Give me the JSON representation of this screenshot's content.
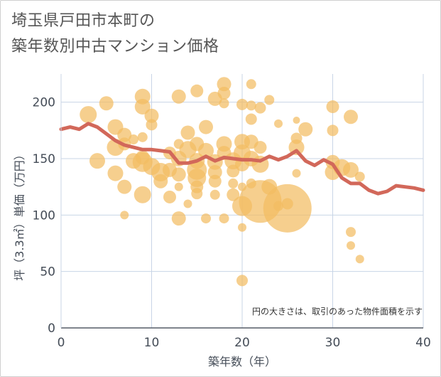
{
  "title_lines": [
    "埼玉県戸田市本町の",
    "築年数別中古マンション価格"
  ],
  "colors": {
    "bubble": "#f2bd63",
    "line": "#d2685a",
    "grid": "#c8d4e6",
    "plot_bg": "#ffffff"
  },
  "chart_data": {
    "type": "scatter",
    "xlabel": "築年数（年）",
    "ylabel": "坪（3.3㎡）単価（万円）",
    "xlim": [
      0,
      40
    ],
    "ylim": [
      0,
      225
    ],
    "x_ticks": [
      "0",
      "10",
      "20",
      "30",
      "40"
    ],
    "y_ticks": [
      "0",
      "50",
      "100",
      "150",
      "200"
    ],
    "note": "円の大きさは、取引のあった物件面積を示す",
    "grid": true,
    "series": [
      {
        "kind": "bubble",
        "points": [
          {
            "x": 3,
            "y": 189,
            "s": 12
          },
          {
            "x": 5,
            "y": 199,
            "s": 10
          },
          {
            "x": 6,
            "y": 178,
            "s": 11
          },
          {
            "x": 7,
            "y": 171,
            "s": 10
          },
          {
            "x": 8,
            "y": 167,
            "s": 7
          },
          {
            "x": 9,
            "y": 205,
            "s": 11
          },
          {
            "x": 9,
            "y": 196,
            "s": 11
          },
          {
            "x": 10,
            "y": 188,
            "s": 10
          },
          {
            "x": 10,
            "y": 180,
            "s": 8
          },
          {
            "x": 9,
            "y": 169,
            "s": 7
          },
          {
            "x": 6,
            "y": 160,
            "s": 12
          },
          {
            "x": 7,
            "y": 163,
            "s": 9
          },
          {
            "x": 4,
            "y": 148,
            "s": 11
          },
          {
            "x": 6,
            "y": 137,
            "s": 11
          },
          {
            "x": 7,
            "y": 125,
            "s": 10
          },
          {
            "x": 9,
            "y": 118,
            "s": 12
          },
          {
            "x": 7,
            "y": 100,
            "s": 6
          },
          {
            "x": 8,
            "y": 148,
            "s": 11
          },
          {
            "x": 9,
            "y": 151,
            "s": 10
          },
          {
            "x": 9,
            "y": 147,
            "s": 14
          },
          {
            "x": 10,
            "y": 143,
            "s": 12
          },
          {
            "x": 11,
            "y": 138,
            "s": 13
          },
          {
            "x": 11,
            "y": 130,
            "s": 10
          },
          {
            "x": 12,
            "y": 116,
            "s": 9
          },
          {
            "x": 12,
            "y": 140,
            "s": 10
          },
          {
            "x": 12,
            "y": 155,
            "s": 9
          },
          {
            "x": 13,
            "y": 163,
            "s": 7
          },
          {
            "x": 13,
            "y": 150,
            "s": 11
          },
          {
            "x": 13,
            "y": 136,
            "s": 10
          },
          {
            "x": 13,
            "y": 125,
            "s": 6
          },
          {
            "x": 13,
            "y": 97,
            "s": 10
          },
          {
            "x": 14,
            "y": 110,
            "s": 6
          },
          {
            "x": 14,
            "y": 173,
            "s": 10
          },
          {
            "x": 14,
            "y": 158,
            "s": 12
          },
          {
            "x": 15,
            "y": 140,
            "s": 14
          },
          {
            "x": 15,
            "y": 133,
            "s": 13
          },
          {
            "x": 15,
            "y": 125,
            "s": 9
          },
          {
            "x": 15,
            "y": 119,
            "s": 8
          },
          {
            "x": 15,
            "y": 148,
            "s": 11
          },
          {
            "x": 15,
            "y": 163,
            "s": 10
          },
          {
            "x": 13,
            "y": 205,
            "s": 10
          },
          {
            "x": 15,
            "y": 210,
            "s": 9
          },
          {
            "x": 16,
            "y": 178,
            "s": 10
          },
          {
            "x": 16,
            "y": 157,
            "s": 11
          },
          {
            "x": 17,
            "y": 203,
            "s": 10
          },
          {
            "x": 17,
            "y": 147,
            "s": 11
          },
          {
            "x": 17,
            "y": 138,
            "s": 10
          },
          {
            "x": 17,
            "y": 130,
            "s": 9
          },
          {
            "x": 17,
            "y": 118,
            "s": 7
          },
          {
            "x": 16,
            "y": 97,
            "s": 7
          },
          {
            "x": 18,
            "y": 216,
            "s": 10
          },
          {
            "x": 18,
            "y": 208,
            "s": 9
          },
          {
            "x": 18,
            "y": 199,
            "s": 7
          },
          {
            "x": 18,
            "y": 163,
            "s": 11
          },
          {
            "x": 18,
            "y": 155,
            "s": 10
          },
          {
            "x": 19,
            "y": 148,
            "s": 12
          },
          {
            "x": 19,
            "y": 139,
            "s": 9
          },
          {
            "x": 19,
            "y": 128,
            "s": 7
          },
          {
            "x": 19,
            "y": 118,
            "s": 9
          },
          {
            "x": 18,
            "y": 97,
            "s": 7
          },
          {
            "x": 20,
            "y": 198,
            "s": 8
          },
          {
            "x": 20,
            "y": 165,
            "s": 11
          },
          {
            "x": 20,
            "y": 155,
            "s": 12
          },
          {
            "x": 20,
            "y": 145,
            "s": 10
          },
          {
            "x": 20,
            "y": 125,
            "s": 6
          },
          {
            "x": 20,
            "y": 108,
            "s": 14
          },
          {
            "x": 20,
            "y": 89,
            "s": 6
          },
          {
            "x": 20,
            "y": 42,
            "s": 8
          },
          {
            "x": 21,
            "y": 216,
            "s": 7
          },
          {
            "x": 21,
            "y": 197,
            "s": 7
          },
          {
            "x": 21,
            "y": 185,
            "s": 8
          },
          {
            "x": 21,
            "y": 165,
            "s": 10
          },
          {
            "x": 21,
            "y": 150,
            "s": 11
          },
          {
            "x": 21,
            "y": 128,
            "s": 7
          },
          {
            "x": 22,
            "y": 112,
            "s": 30
          },
          {
            "x": 22,
            "y": 145,
            "s": 12
          },
          {
            "x": 22,
            "y": 160,
            "s": 9
          },
          {
            "x": 22,
            "y": 195,
            "s": 8
          },
          {
            "x": 23,
            "y": 202,
            "s": 7
          },
          {
            "x": 23,
            "y": 125,
            "s": 11
          },
          {
            "x": 24,
            "y": 181,
            "s": 6
          },
          {
            "x": 24,
            "y": 108,
            "s": 7
          },
          {
            "x": 25,
            "y": 106,
            "s": 34
          },
          {
            "x": 25,
            "y": 110,
            "s": 8
          },
          {
            "x": 26,
            "y": 184,
            "s": 5
          },
          {
            "x": 26,
            "y": 168,
            "s": 8
          },
          {
            "x": 26,
            "y": 160,
            "s": 11
          },
          {
            "x": 26,
            "y": 137,
            "s": 6
          },
          {
            "x": 27,
            "y": 176,
            "s": 10
          },
          {
            "x": 30,
            "y": 196,
            "s": 9
          },
          {
            "x": 30,
            "y": 175,
            "s": 8
          },
          {
            "x": 30,
            "y": 147,
            "s": 10
          },
          {
            "x": 30,
            "y": 138,
            "s": 11
          },
          {
            "x": 31,
            "y": 142,
            "s": 12
          },
          {
            "x": 32,
            "y": 187,
            "s": 10
          },
          {
            "x": 32,
            "y": 140,
            "s": 11
          },
          {
            "x": 32,
            "y": 85,
            "s": 7
          },
          {
            "x": 32,
            "y": 73,
            "s": 6
          },
          {
            "x": 33,
            "y": 134,
            "s": 7
          },
          {
            "x": 33,
            "y": 61,
            "s": 6
          }
        ]
      },
      {
        "kind": "line",
        "x": [
          0,
          1,
          2,
          3,
          4,
          5,
          6,
          7,
          8,
          9,
          10,
          11,
          12,
          13,
          14,
          15,
          16,
          17,
          18,
          19,
          20,
          21,
          22,
          23,
          24,
          25,
          26,
          27,
          28,
          29,
          30,
          31,
          32,
          33,
          34,
          35,
          36,
          37,
          38,
          39,
          40
        ],
        "y": [
          176,
          178,
          176,
          181,
          178,
          172,
          166,
          162,
          160,
          158,
          158,
          157,
          156,
          146,
          146,
          148,
          152,
          148,
          151,
          150,
          149,
          149,
          148,
          152,
          149,
          152,
          157,
          148,
          144,
          149,
          145,
          133,
          128,
          128,
          122,
          119,
          121,
          126,
          125,
          124,
          122
        ]
      }
    ]
  }
}
